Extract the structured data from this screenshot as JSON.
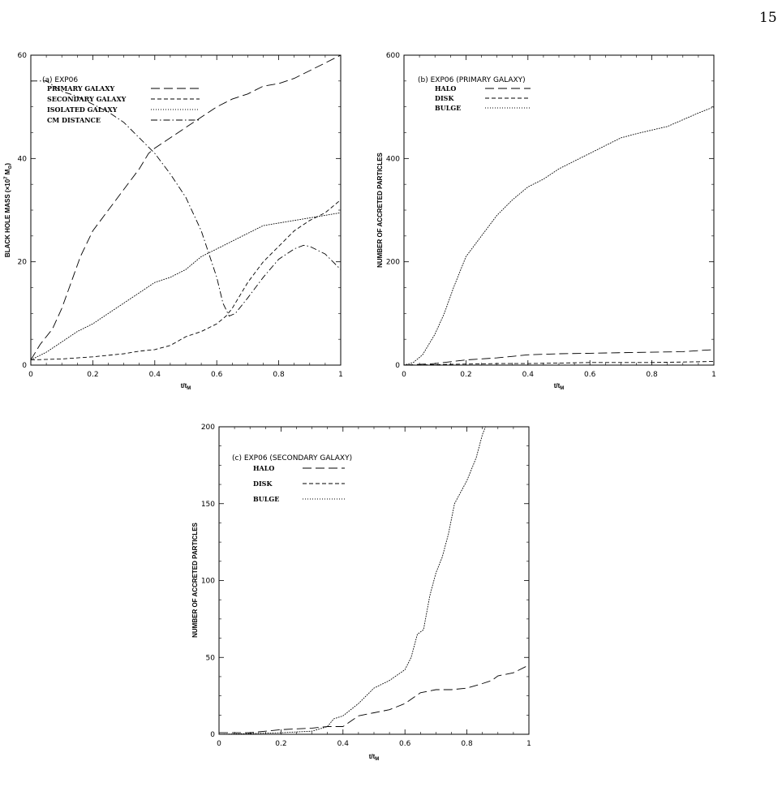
{
  "page": {
    "number": "15"
  },
  "chart_data": [
    {
      "type": "line",
      "label": "(a) EXP06",
      "xlabel": "t/t",
      "xlabel_sub": "M",
      "ylabel": "BLACK HOLE MASS (×10",
      "ylabel_sup": "7",
      "ylabel_tail": "M",
      "ylabel_sub": "⊙",
      "ylabel_close": ")",
      "xlim": [
        0,
        1
      ],
      "ylim": [
        0,
        60
      ],
      "xticks": [
        "0",
        "0.2",
        "0.4",
        "0.6",
        "0.8",
        "1"
      ],
      "yticks": [
        "0",
        "20",
        "40",
        "60"
      ],
      "legend_placement": "top-left",
      "series": [
        {
          "name": "PRIMARY GALAXY",
          "style": "long-dash",
          "points": [
            [
              0,
              1
            ],
            [
              0.03,
              4
            ],
            [
              0.07,
              7
            ],
            [
              0.1,
              11
            ],
            [
              0.13,
              16
            ],
            [
              0.16,
              21
            ],
            [
              0.2,
              26
            ],
            [
              0.25,
              30
            ],
            [
              0.3,
              34
            ],
            [
              0.35,
              38
            ],
            [
              0.38,
              41
            ],
            [
              0.4,
              42
            ],
            [
              0.45,
              44
            ],
            [
              0.5,
              46
            ],
            [
              0.55,
              48
            ],
            [
              0.6,
              50
            ],
            [
              0.65,
              51.5
            ],
            [
              0.7,
              52.5
            ],
            [
              0.75,
              54
            ],
            [
              0.8,
              54.5
            ],
            [
              0.85,
              55.5
            ],
            [
              0.9,
              57
            ],
            [
              0.95,
              58.5
            ],
            [
              1,
              60
            ]
          ]
        },
        {
          "name": "SECONDARY GALAXY",
          "style": "short-dash",
          "points": [
            [
              0,
              1
            ],
            [
              0.1,
              1.2
            ],
            [
              0.2,
              1.6
            ],
            [
              0.3,
              2.2
            ],
            [
              0.35,
              2.7
            ],
            [
              0.4,
              3
            ],
            [
              0.45,
              3.8
            ],
            [
              0.5,
              5.5
            ],
            [
              0.55,
              6.5
            ],
            [
              0.6,
              8
            ],
            [
              0.63,
              9.5
            ],
            [
              0.65,
              11
            ],
            [
              0.7,
              16
            ],
            [
              0.75,
              20
            ],
            [
              0.8,
              23
            ],
            [
              0.85,
              26
            ],
            [
              0.9,
              28
            ],
            [
              0.95,
              29.5
            ],
            [
              1,
              32
            ]
          ]
        },
        {
          "name": "ISOLATED GALAXY",
          "style": "dotted",
          "points": [
            [
              0,
              1
            ],
            [
              0.05,
              2.5
            ],
            [
              0.1,
              4.5
            ],
            [
              0.15,
              6.5
            ],
            [
              0.2,
              8
            ],
            [
              0.25,
              10
            ],
            [
              0.3,
              12
            ],
            [
              0.35,
              14
            ],
            [
              0.4,
              16
            ],
            [
              0.45,
              17
            ],
            [
              0.5,
              18.5
            ],
            [
              0.55,
              21
            ],
            [
              0.6,
              22.5
            ],
            [
              0.65,
              24
            ],
            [
              0.7,
              25.5
            ],
            [
              0.75,
              27
            ],
            [
              0.8,
              27.5
            ],
            [
              0.85,
              28
            ],
            [
              0.9,
              28.5
            ],
            [
              0.95,
              29
            ],
            [
              1,
              29.5
            ]
          ]
        },
        {
          "name": "CM DISTANCE",
          "style": "dash-dot",
          "points": [
            [
              0,
              55
            ],
            [
              0.05,
              55
            ],
            [
              0.1,
              53
            ],
            [
              0.15,
              52
            ],
            [
              0.2,
              50.5
            ],
            [
              0.25,
              49
            ],
            [
              0.3,
              47
            ],
            [
              0.35,
              44
            ],
            [
              0.4,
              41
            ],
            [
              0.45,
              37
            ],
            [
              0.5,
              32.5
            ],
            [
              0.55,
              26
            ],
            [
              0.6,
              17
            ],
            [
              0.62,
              12
            ],
            [
              0.64,
              9.5
            ],
            [
              0.66,
              10
            ],
            [
              0.7,
              13
            ],
            [
              0.75,
              17
            ],
            [
              0.8,
              20.5
            ],
            [
              0.85,
              22.5
            ],
            [
              0.88,
              23.2
            ],
            [
              0.9,
              23
            ],
            [
              0.95,
              21.5
            ],
            [
              1,
              18.5
            ]
          ]
        }
      ]
    },
    {
      "type": "line",
      "label": "(b) EXP06 (PRIMARY GALAXY)",
      "xlabel": "t/t",
      "xlabel_sub": "M",
      "ylabel": "NUMBER OF ACCRETED PARTICLES",
      "xlim": [
        0,
        1
      ],
      "ylim": [
        0,
        600
      ],
      "xticks": [
        "0",
        "0.2",
        "0.4",
        "0.6",
        "0.8",
        "1"
      ],
      "yticks": [
        "0",
        "200",
        "400",
        "600"
      ],
      "legend_placement": "top-left",
      "series": [
        {
          "name": "HALO",
          "style": "long-dash",
          "points": [
            [
              0,
              0
            ],
            [
              0.1,
              3
            ],
            [
              0.2,
              10
            ],
            [
              0.3,
              14
            ],
            [
              0.4,
              20
            ],
            [
              0.5,
              22
            ],
            [
              0.6,
              23
            ],
            [
              0.7,
              24
            ],
            [
              0.8,
              25
            ],
            [
              0.9,
              26
            ],
            [
              1,
              30
            ]
          ]
        },
        {
          "name": "DISK",
          "style": "short-dash",
          "points": [
            [
              0,
              0
            ],
            [
              0.1,
              1
            ],
            [
              0.2,
              2
            ],
            [
              0.3,
              3
            ],
            [
              0.4,
              3
            ],
            [
              0.5,
              4
            ],
            [
              0.6,
              5
            ],
            [
              0.7,
              5
            ],
            [
              0.8,
              5
            ],
            [
              0.9,
              6
            ],
            [
              1,
              7
            ]
          ]
        },
        {
          "name": "BULGE",
          "style": "dotted",
          "points": [
            [
              0,
              0
            ],
            [
              0.03,
              5
            ],
            [
              0.06,
              20
            ],
            [
              0.08,
              40
            ],
            [
              0.1,
              60
            ],
            [
              0.13,
              100
            ],
            [
              0.16,
              150
            ],
            [
              0.2,
              210
            ],
            [
              0.25,
              250
            ],
            [
              0.3,
              290
            ],
            [
              0.35,
              320
            ],
            [
              0.4,
              345
            ],
            [
              0.45,
              360
            ],
            [
              0.5,
              380
            ],
            [
              0.55,
              395
            ],
            [
              0.6,
              410
            ],
            [
              0.65,
              425
            ],
            [
              0.7,
              440
            ],
            [
              0.75,
              448
            ],
            [
              0.8,
              455
            ],
            [
              0.85,
              462
            ],
            [
              0.9,
              475
            ],
            [
              0.95,
              488
            ],
            [
              1,
              500
            ]
          ]
        }
      ]
    },
    {
      "type": "line",
      "label": "(c) EXP06 (SECONDARY GALAXY)",
      "xlabel": "t/t",
      "xlabel_sub": "M",
      "ylabel": "NUMBER OF ACCRETED PARTICLES",
      "xlim": [
        0,
        1
      ],
      "ylim": [
        0,
        200
      ],
      "xticks": [
        "0",
        "0.2",
        "0.4",
        "0.6",
        "0.8",
        "1"
      ],
      "yticks": [
        "0",
        "50",
        "100",
        "150",
        "200"
      ],
      "legend_placement": "top-left",
      "series": [
        {
          "name": "HALO",
          "style": "long-dash",
          "points": [
            [
              0,
              1
            ],
            [
              0.1,
              1
            ],
            [
              0.15,
              2
            ],
            [
              0.2,
              3
            ],
            [
              0.3,
              4
            ],
            [
              0.35,
              5
            ],
            [
              0.4,
              5
            ],
            [
              0.45,
              12
            ],
            [
              0.5,
              14
            ],
            [
              0.55,
              16
            ],
            [
              0.6,
              20
            ],
            [
              0.65,
              27
            ],
            [
              0.7,
              29
            ],
            [
              0.75,
              29
            ],
            [
              0.8,
              30
            ],
            [
              0.85,
              33
            ],
            [
              0.88,
              35
            ],
            [
              0.9,
              38
            ],
            [
              0.95,
              40
            ],
            [
              1,
              45
            ]
          ]
        },
        {
          "name": "DISK",
          "style": "short-dash",
          "points": [
            [
              0,
              0
            ],
            [
              0.2,
              0
            ],
            [
              0.4,
              0
            ],
            [
              0.6,
              0
            ],
            [
              0.8,
              0
            ],
            [
              1,
              0
            ]
          ]
        },
        {
          "name": "BULGE",
          "style": "dotted",
          "points": [
            [
              0,
              0
            ],
            [
              0.1,
              0.5
            ],
            [
              0.2,
              1
            ],
            [
              0.3,
              2
            ],
            [
              0.35,
              5
            ],
            [
              0.37,
              10
            ],
            [
              0.4,
              12
            ],
            [
              0.45,
              20
            ],
            [
              0.5,
              30
            ],
            [
              0.55,
              35
            ],
            [
              0.6,
              42
            ],
            [
              0.62,
              50
            ],
            [
              0.64,
              65
            ],
            [
              0.66,
              68
            ],
            [
              0.68,
              90
            ],
            [
              0.7,
              105
            ],
            [
              0.72,
              115
            ],
            [
              0.74,
              130
            ],
            [
              0.76,
              150
            ],
            [
              0.8,
              165
            ],
            [
              0.83,
              180
            ],
            [
              0.85,
              195
            ],
            [
              0.86,
              200
            ]
          ]
        }
      ]
    }
  ]
}
